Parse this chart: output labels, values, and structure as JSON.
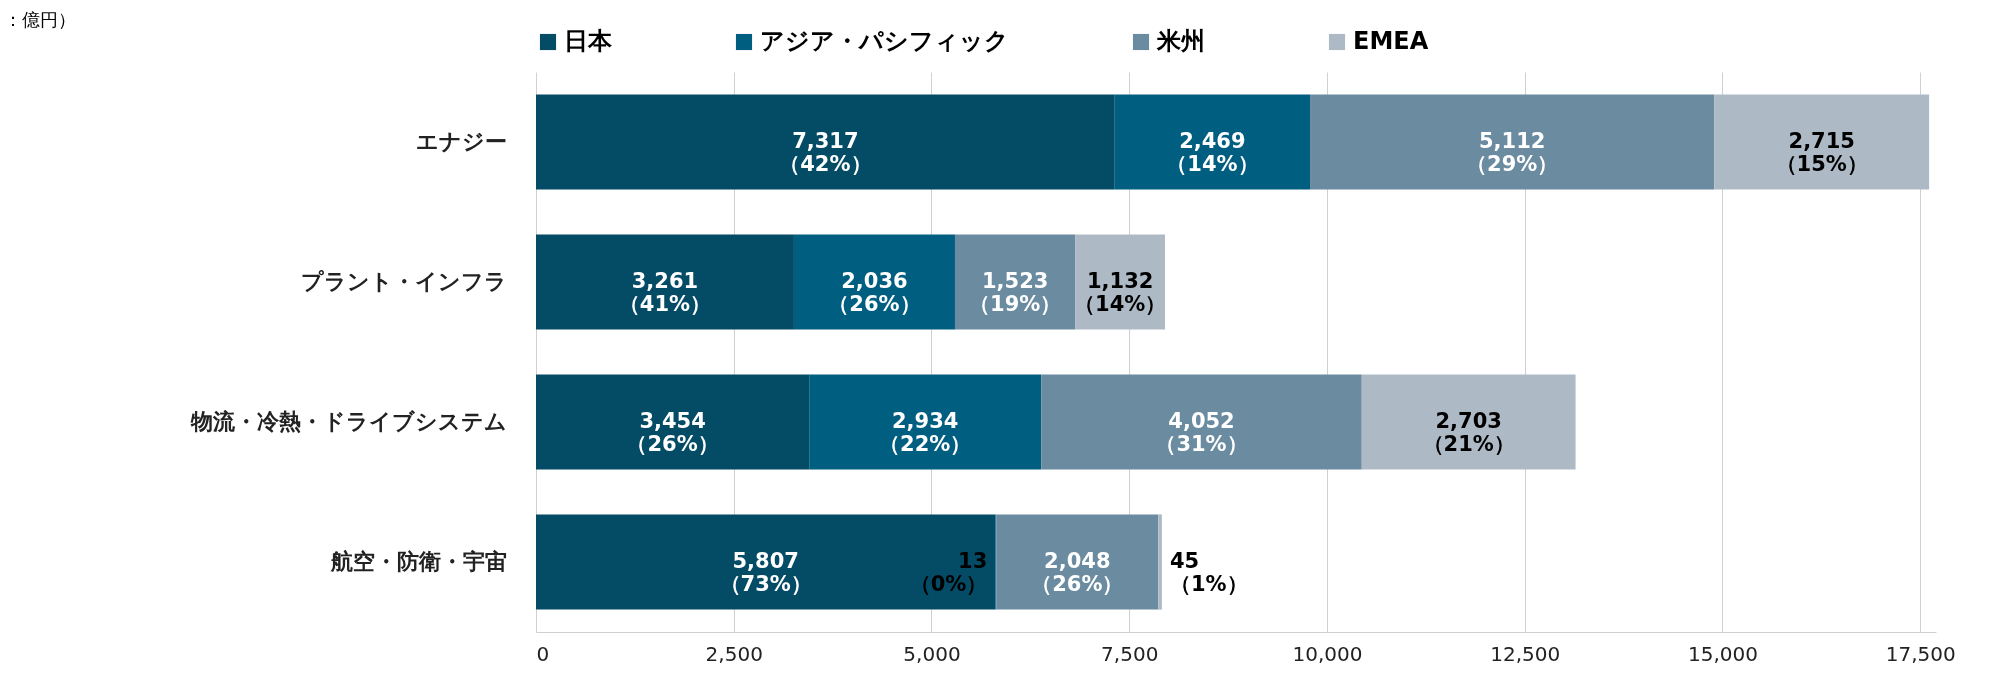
{
  "chart_data": {
    "type": "bar",
    "orientation": "horizontal",
    "stacked": true,
    "annotations": [
      "：億円）"
    ],
    "categories": [
      "エナジー",
      "プラント・インフラ",
      "物流・冷熱・ドライブシステム",
      "航空・防衛・宇宙"
    ],
    "series": [
      {
        "name": "日本",
        "color": "#044b66",
        "values": [
          7317,
          3261,
          3454,
          5807
        ],
        "value_labels": [
          "7,317\n（42%）",
          "3,261\n（41%）",
          "3,454\n（26%）",
          "5,807\n（73%）"
        ]
      },
      {
        "name": "アジア・パシフィック",
        "color": "#005e80",
        "values": [
          2469,
          2036,
          2934,
          13
        ],
        "value_labels": [
          "2,469\n（14%）",
          "2,036\n（26%）",
          "2,934\n（22%）",
          "13\n（0%）"
        ]
      },
      {
        "name": "米州",
        "color": "#6a8ba0",
        "values": [
          5112,
          1523,
          4052,
          2048
        ],
        "value_labels": [
          "5,112\n（29%）",
          "1,523\n（19%）",
          "4,052\n（31%）",
          "2,048\n（26%）"
        ]
      },
      {
        "name": "EMEA",
        "color": "#adb9c5",
        "values": [
          2715,
          1132,
          2703,
          45
        ],
        "value_labels": [
          "2,715\n（15%）",
          "1,132\n（14%）",
          "2,703\n（21%）",
          "45\n（1%）"
        ]
      }
    ],
    "xlim": [
      0,
      17700
    ],
    "xticks": [
      0,
      {
        "value": 2500,
        "label": "2,500"
      },
      {
        "value": 5000,
        "label": "5,000"
      },
      {
        "value": 7500,
        "label": "7,500"
      },
      {
        "value": 10000,
        "label": "10,000"
      },
      {
        "value": 12500,
        "label": "12,500"
      },
      {
        "value": 15000,
        "label": "15,000"
      },
      {
        "value": 17500,
        "label": "17,500"
      }
    ],
    "grid": "x",
    "legend": "top"
  }
}
